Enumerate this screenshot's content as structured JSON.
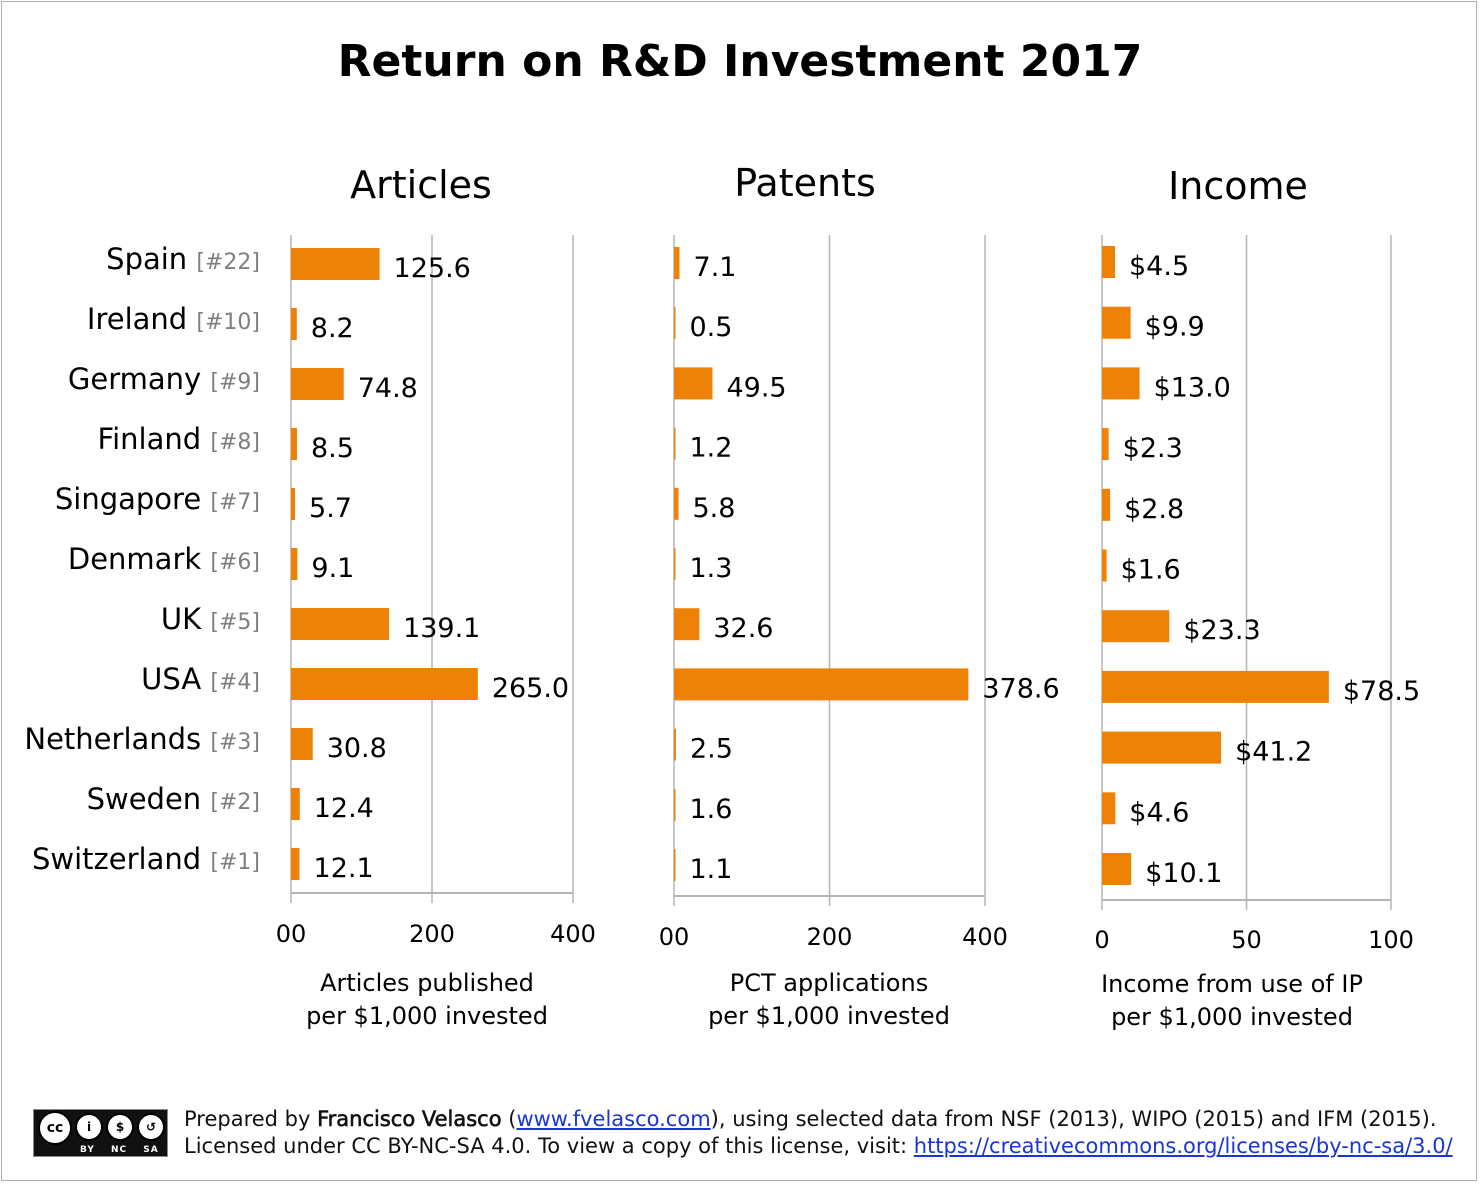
{
  "chart_data": [
    {
      "type": "bar",
      "orientation": "horizontal",
      "title": "Articles",
      "xlabel": [
        "Articles published",
        "per $1,000 invested"
      ],
      "xlim": [
        0,
        400
      ],
      "ticks": [
        "00",
        "200",
        "400"
      ],
      "tick_values": [
        0,
        200,
        400
      ],
      "value_prefix": "",
      "grid": true,
      "values": [
        125.6,
        8.2,
        74.8,
        8.5,
        5.7,
        9.1,
        139.1,
        265.0,
        30.8,
        12.4,
        12.1
      ]
    },
    {
      "type": "bar",
      "orientation": "horizontal",
      "title": "Patents",
      "xlabel": [
        "PCT applications",
        "per $1,000 invested"
      ],
      "xlim": [
        0,
        400
      ],
      "ticks": [
        "00",
        "200",
        "400"
      ],
      "tick_values": [
        0,
        200,
        400
      ],
      "value_prefix": "",
      "grid": true,
      "values": [
        7.1,
        0.5,
        49.5,
        1.2,
        5.8,
        1.3,
        32.6,
        378.6,
        2.5,
        1.6,
        1.1
      ]
    },
    {
      "type": "bar",
      "orientation": "horizontal",
      "title": "Income",
      "xlabel": [
        "Income from use of IP",
        "per $1,000 invested"
      ],
      "xlim": [
        0,
        100
      ],
      "ticks": [
        "0",
        "50",
        "100"
      ],
      "tick_values": [
        0,
        50,
        100
      ],
      "value_prefix": "$",
      "grid": true,
      "values": [
        4.5,
        9.9,
        13.0,
        2.3,
        2.8,
        1.6,
        23.3,
        78.5,
        41.2,
        4.6,
        10.1
      ]
    }
  ],
  "title": "Return on R&D Investment 2017",
  "categories": [
    {
      "name": "Spain",
      "rank": "[#22]"
    },
    {
      "name": "Ireland",
      "rank": "[#10]"
    },
    {
      "name": "Germany",
      "rank": "[#9]"
    },
    {
      "name": "Finland",
      "rank": "[#8]"
    },
    {
      "name": "Singapore",
      "rank": "[#7]"
    },
    {
      "name": "Denmark",
      "rank": "[#6]"
    },
    {
      "name": "UK",
      "rank": "[#5]"
    },
    {
      "name": "USA",
      "rank": "[#4]"
    },
    {
      "name": "Netherlands",
      "rank": "[#3]"
    },
    {
      "name": "Sweden",
      "rank": "[#2]"
    },
    {
      "name": "Switzerland",
      "rank": "[#1]"
    }
  ],
  "colors": {
    "bar": "#ED8207",
    "grid": "#B5B5B5",
    "rank": "#7F7F7F",
    "link": "#1A35D6"
  },
  "footer": {
    "line1_pre": "Prepared by ",
    "author": "Francisco Velasco",
    "paren_open": " (",
    "author_link": "www.fvelasco.com",
    "line1_post": "), using selected data from NSF (2013), WIPO (2015) and IFM (2015).",
    "line2_pre": "Licensed under CC BY-NC-SA 4.0. To view a copy of this license, visit: ",
    "license_link": "https://creativecommons.org/licenses/by-nc-sa/3.0/",
    "badge_text": "BY NC SA"
  }
}
